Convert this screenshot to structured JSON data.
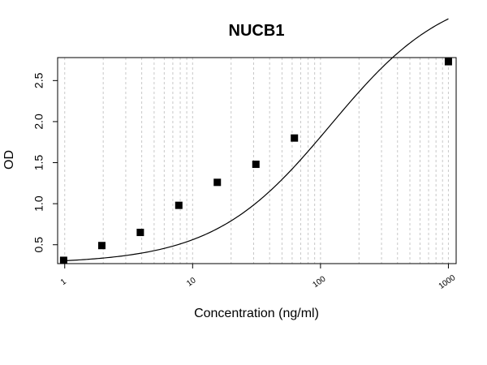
{
  "chart_data": {
    "type": "scatter",
    "title": "NUCB1",
    "xlabel": "Concentration (ng/ml)",
    "ylabel": "OD",
    "x_scale": "log",
    "xlim": [
      0.88,
      1150
    ],
    "ylim": [
      0.27,
      2.78
    ],
    "grid": "vertical-dashed",
    "x_ticks": [
      "1",
      "10",
      "100",
      "1000"
    ],
    "y_ticks": [
      "0.5",
      "1.0",
      "1.5",
      "2.0",
      "2.5"
    ],
    "series": [
      {
        "x": [
          0.98,
          1.95,
          3.9,
          7.8,
          15.6,
          31.25,
          62.5,
          1000
        ],
        "y": [
          0.31,
          0.49,
          0.65,
          0.98,
          1.26,
          1.48,
          1.8,
          2.73
        ]
      }
    ],
    "fit_curve": {
      "type": "4PL",
      "a": 0.27,
      "b": 0.95,
      "c": 120,
      "d": 3.65
    },
    "colors": {
      "marker": "#000000",
      "line": "#000000",
      "grid": "#c8c8c8",
      "box": "#000000"
    }
  }
}
